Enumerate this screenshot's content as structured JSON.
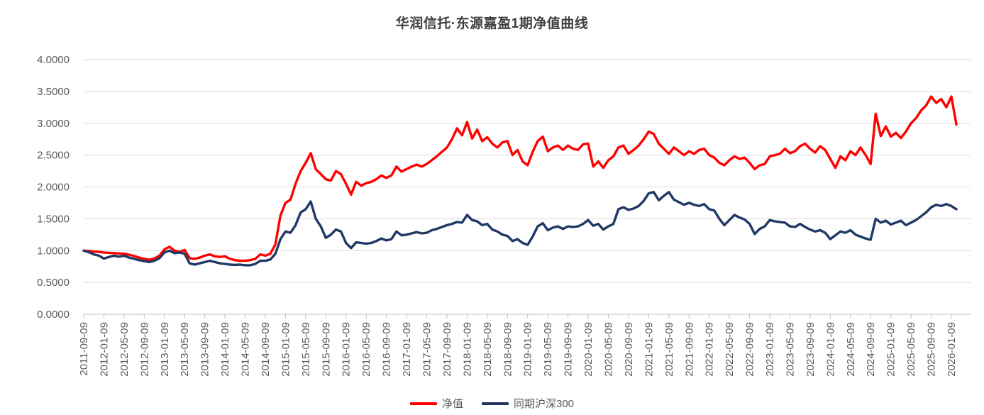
{
  "chart": {
    "title": "华润信托·东源嘉盈1期净值曲线"
  },
  "legend": {
    "items": [
      {
        "label": "净值",
        "color": "#ff0000"
      },
      {
        "label": "同期沪深300",
        "color": "#1f3864"
      }
    ]
  },
  "colors": {
    "gridline": "#d9d9d9",
    "axis": "#bfbfbf",
    "tick_text": "#595959",
    "title_text": "#3f3f3f",
    "background": "#ffffff"
  },
  "chart_data": {
    "type": "line",
    "title": "华润信托·东源嘉盈1期净值曲线",
    "grid": true,
    "legend_position": "bottom",
    "ylim": [
      0,
      4
    ],
    "y_tick_labels": [
      "0.0000",
      "0.5000",
      "1.0000",
      "1.5000",
      "2.0000",
      "2.5000",
      "3.0000",
      "3.5000",
      "4.0000"
    ],
    "x_tick_step_months": 4,
    "x_tick_labels": [
      "2011-09-09",
      "2012-01-09",
      "2012-05-09",
      "2012-09-09",
      "2013-01-09",
      "2013-05-09",
      "2013-09-09",
      "2014-01-09",
      "2014-05-09",
      "2014-09-09",
      "2015-01-09",
      "2015-05-09",
      "2015-09-09",
      "2016-01-09",
      "2016-05-09",
      "2016-09-09",
      "2017-01-09",
      "2017-05-09",
      "2017-09-09",
      "2018-01-09",
      "2018-05-09",
      "2018-09-09",
      "2019-01-09",
      "2019-05-09",
      "2019-09-09",
      "2020-01-09",
      "2020-05-09",
      "2020-09-09",
      "2021-01-09",
      "2021-05-09",
      "2021-09-09",
      "2022-01-09",
      "2022-05-09",
      "2022-09-09",
      "2023-01-09",
      "2023-05-09",
      "2023-09-09",
      "2024-01-09",
      "2024-05-09",
      "2024-09-09",
      "2025-01-09",
      "2025-05-09",
      "2025-09-09",
      "2026-01-09"
    ],
    "x_unit": "months since 2011-09-09",
    "series": [
      {
        "name": "净值",
        "color": "#ff0000",
        "values": [
          1.0,
          0.995,
          0.985,
          0.98,
          0.97,
          0.965,
          0.96,
          0.955,
          0.95,
          0.935,
          0.915,
          0.89,
          0.87,
          0.855,
          0.875,
          0.92,
          1.02,
          1.06,
          1.0,
          0.98,
          1.01,
          0.88,
          0.87,
          0.89,
          0.92,
          0.94,
          0.91,
          0.9,
          0.91,
          0.87,
          0.85,
          0.84,
          0.84,
          0.85,
          0.87,
          0.94,
          0.92,
          0.95,
          1.1,
          1.55,
          1.75,
          1.8,
          2.05,
          2.25,
          2.38,
          2.53,
          2.28,
          2.2,
          2.12,
          2.1,
          2.25,
          2.2,
          2.05,
          1.88,
          2.08,
          2.02,
          2.06,
          2.08,
          2.12,
          2.18,
          2.14,
          2.18,
          2.32,
          2.24,
          2.28,
          2.32,
          2.35,
          2.32,
          2.36,
          2.42,
          2.48,
          2.55,
          2.62,
          2.75,
          2.92,
          2.81,
          3.02,
          2.76,
          2.9,
          2.72,
          2.78,
          2.68,
          2.62,
          2.7,
          2.72,
          2.5,
          2.58,
          2.4,
          2.34,
          2.55,
          2.72,
          2.79,
          2.56,
          2.62,
          2.65,
          2.58,
          2.65,
          2.6,
          2.58,
          2.67,
          2.68,
          2.32,
          2.4,
          2.3,
          2.42,
          2.48,
          2.62,
          2.65,
          2.52,
          2.58,
          2.65,
          2.75,
          2.87,
          2.83,
          2.68,
          2.6,
          2.52,
          2.62,
          2.56,
          2.5,
          2.56,
          2.52,
          2.58,
          2.6,
          2.5,
          2.46,
          2.38,
          2.34,
          2.42,
          2.48,
          2.44,
          2.46,
          2.38,
          2.28,
          2.34,
          2.36,
          2.48,
          2.5,
          2.52,
          2.6,
          2.53,
          2.56,
          2.64,
          2.68,
          2.6,
          2.54,
          2.64,
          2.58,
          2.44,
          2.3,
          2.48,
          2.42,
          2.56,
          2.5,
          2.62,
          2.5,
          2.36,
          3.15,
          2.8,
          2.95,
          2.79,
          2.85,
          2.77,
          2.87,
          3.0,
          3.08,
          3.2,
          3.28,
          3.42,
          3.32,
          3.38,
          3.25,
          3.42,
          2.98
        ]
      },
      {
        "name": "同期沪深300",
        "color": "#1f3864",
        "values": [
          1.0,
          0.975,
          0.94,
          0.92,
          0.875,
          0.9,
          0.92,
          0.905,
          0.92,
          0.89,
          0.87,
          0.85,
          0.835,
          0.82,
          0.84,
          0.88,
          0.97,
          1.0,
          0.96,
          0.97,
          0.95,
          0.8,
          0.78,
          0.8,
          0.82,
          0.84,
          0.82,
          0.8,
          0.79,
          0.78,
          0.775,
          0.78,
          0.77,
          0.77,
          0.79,
          0.84,
          0.84,
          0.86,
          0.95,
          1.18,
          1.3,
          1.28,
          1.4,
          1.6,
          1.65,
          1.77,
          1.5,
          1.38,
          1.2,
          1.25,
          1.33,
          1.3,
          1.12,
          1.04,
          1.13,
          1.12,
          1.11,
          1.12,
          1.15,
          1.19,
          1.16,
          1.18,
          1.3,
          1.24,
          1.25,
          1.27,
          1.29,
          1.27,
          1.28,
          1.32,
          1.34,
          1.37,
          1.4,
          1.42,
          1.45,
          1.44,
          1.56,
          1.48,
          1.46,
          1.4,
          1.42,
          1.33,
          1.3,
          1.25,
          1.23,
          1.15,
          1.18,
          1.12,
          1.09,
          1.22,
          1.38,
          1.43,
          1.32,
          1.36,
          1.38,
          1.34,
          1.38,
          1.37,
          1.38,
          1.42,
          1.48,
          1.39,
          1.42,
          1.33,
          1.38,
          1.42,
          1.65,
          1.68,
          1.64,
          1.66,
          1.7,
          1.78,
          1.9,
          1.92,
          1.79,
          1.86,
          1.92,
          1.8,
          1.76,
          1.72,
          1.75,
          1.72,
          1.7,
          1.73,
          1.65,
          1.63,
          1.5,
          1.4,
          1.48,
          1.56,
          1.52,
          1.49,
          1.42,
          1.26,
          1.34,
          1.38,
          1.48,
          1.46,
          1.45,
          1.44,
          1.38,
          1.37,
          1.42,
          1.37,
          1.33,
          1.3,
          1.32,
          1.28,
          1.18,
          1.24,
          1.3,
          1.28,
          1.32,
          1.25,
          1.22,
          1.19,
          1.17,
          1.5,
          1.44,
          1.47,
          1.41,
          1.44,
          1.47,
          1.4,
          1.44,
          1.48,
          1.54,
          1.6,
          1.68,
          1.72,
          1.7,
          1.73,
          1.7,
          1.65
        ]
      }
    ]
  }
}
